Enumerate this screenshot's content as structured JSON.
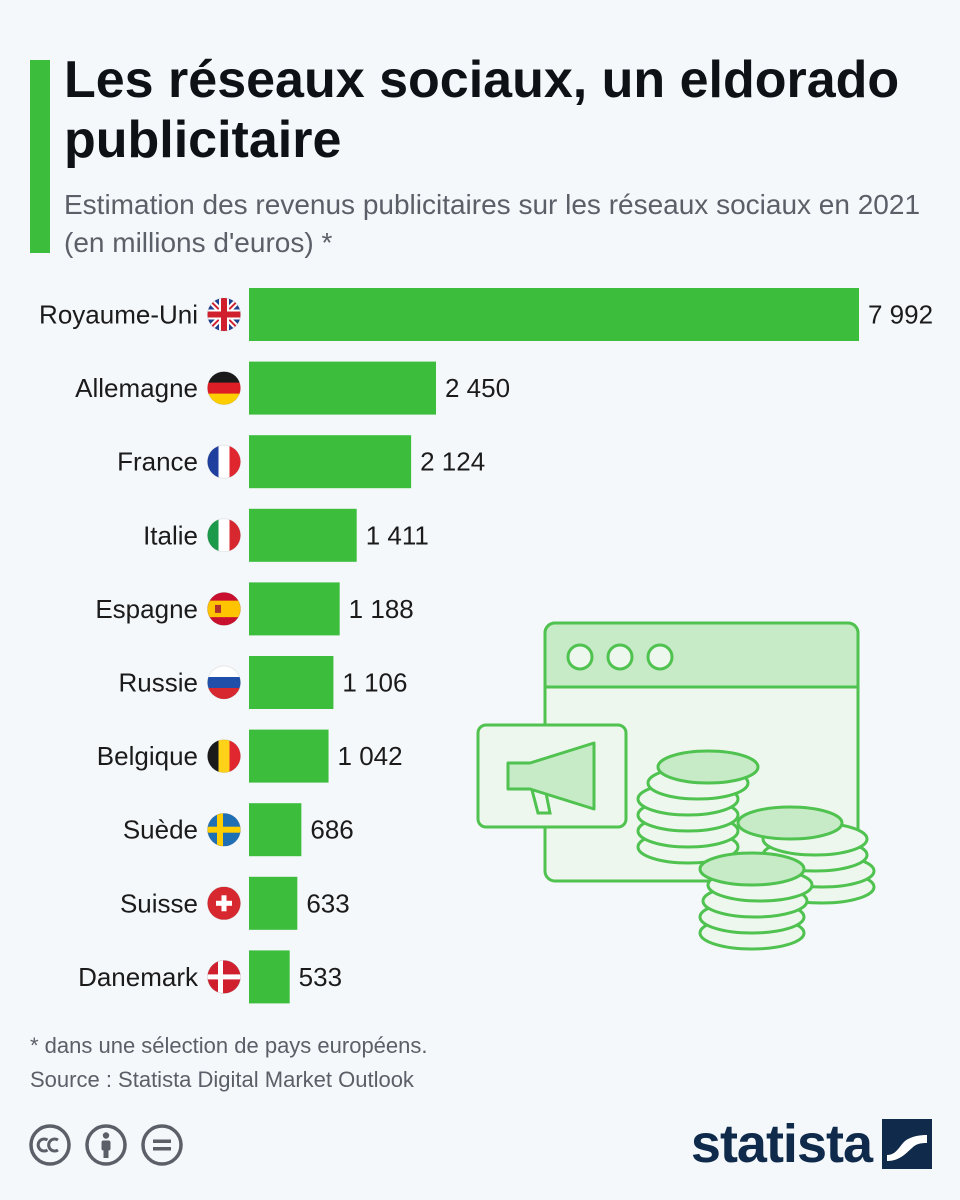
{
  "title": "Les réseaux sociaux, un eldorado publicitaire",
  "subtitle": "Estimation des revenus publicitaires sur les réseaux sociaux en 2021 (en millions d'euros) *",
  "footnote": "* dans une sélection de pays européens.",
  "source": "Source : Statista Digital Market Outlook",
  "brand": "statista",
  "colors": {
    "accent": "#3cbd3c",
    "bar": "#3cbd3c",
    "text": "#1b1b1b",
    "muted": "#5b6068",
    "brand": "#0f2a4a"
  },
  "license_icons": [
    "cc-icon",
    "attribution-icon",
    "no-derivatives-icon"
  ],
  "chart_data": {
    "type": "bar",
    "orientation": "horizontal",
    "title": "Les réseaux sociaux, un eldorado publicitaire",
    "subtitle": "Estimation des revenus publicitaires sur les réseaux sociaux en 2021 (en millions d'euros) *",
    "xlabel": "",
    "ylabel": "",
    "xlim": [
      0,
      7992
    ],
    "grid": false,
    "categories": [
      "Royaume-Uni",
      "Allemagne",
      "France",
      "Italie",
      "Espagne",
      "Russie",
      "Belgique",
      "Suède",
      "Suisse",
      "Danemark"
    ],
    "values": [
      7992,
      2450,
      2124,
      1411,
      1188,
      1106,
      1042,
      686,
      633,
      533
    ],
    "value_labels": [
      "7 992",
      "2 450",
      "2 124",
      "1 411",
      "1 188",
      "1 106",
      "1 042",
      "686",
      "633",
      "533"
    ],
    "flags": [
      "uk",
      "de",
      "fr",
      "it",
      "es",
      "ru",
      "be",
      "se",
      "ch",
      "dk"
    ]
  }
}
